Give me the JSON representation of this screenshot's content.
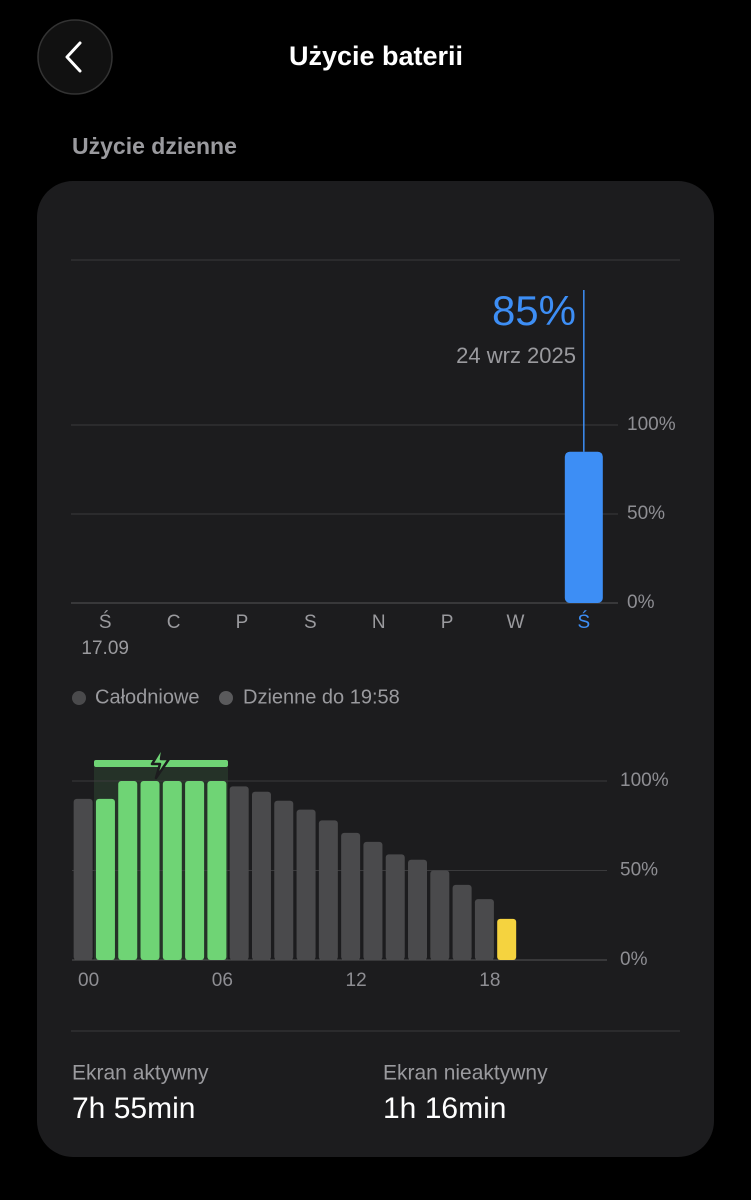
{
  "header": {
    "title": "Użycie baterii"
  },
  "section": {
    "label": "Użycie dzienne"
  },
  "chart_data": [
    {
      "type": "bar",
      "categories": [
        "Ś",
        "C",
        "P",
        "S",
        "N",
        "P",
        "W",
        "Ś"
      ],
      "category_sublabels": [
        "17.09",
        null,
        null,
        null,
        null,
        null,
        null,
        null
      ],
      "values": [
        null,
        null,
        null,
        null,
        null,
        null,
        null,
        85
      ],
      "value_labels": [
        null,
        null,
        null,
        null,
        null,
        null,
        null,
        "85%"
      ],
      "annotation": "24 wrz 2025",
      "color": "#3d8ef5",
      "ylim": [
        0,
        100
      ],
      "yticks": [
        {
          "value": 0,
          "label": "0%"
        },
        {
          "value": 50,
          "label": "50%"
        },
        {
          "value": 100,
          "label": "100%"
        }
      ],
      "grid": true
    },
    {
      "type": "bar",
      "legend": [
        "Całodniowe",
        "Dzienne do 19:58"
      ],
      "categories": [
        "00",
        null,
        null,
        null,
        null,
        null,
        "06",
        null,
        null,
        null,
        null,
        null,
        "12",
        null,
        null,
        null,
        null,
        null,
        "18",
        null,
        null,
        null,
        null,
        null
      ],
      "values": [
        90,
        90,
        100,
        100,
        100,
        100,
        100,
        97,
        94,
        89,
        84,
        78,
        71,
        66,
        59,
        56,
        50,
        42,
        34,
        23,
        null,
        null,
        null,
        null
      ],
      "colors": [
        "#4a4a4c",
        "#6fd475",
        "#6fd475",
        "#6fd475",
        "#6fd475",
        "#6fd475",
        "#6fd475",
        "#4a4a4c",
        "#4a4a4c",
        "#4a4a4c",
        "#4a4a4c",
        "#4a4a4c",
        "#4a4a4c",
        "#4a4a4c",
        "#4a4a4c",
        "#4a4a4c",
        "#4a4a4c",
        "#4a4a4c",
        "#4a4a4c",
        "#f5d33f",
        null,
        null,
        null,
        null
      ],
      "ylim": [
        0,
        100
      ],
      "yticks": [
        {
          "value": 0,
          "label": "0%"
        },
        {
          "value": 50,
          "label": "50%"
        },
        {
          "value": 100,
          "label": "100%"
        }
      ],
      "grid": true
    }
  ],
  "stats": [
    {
      "label": "Ekran aktywny",
      "value": "7h 55min"
    },
    {
      "label": "Ekran nieaktywny",
      "value": "1h 16min"
    }
  ]
}
